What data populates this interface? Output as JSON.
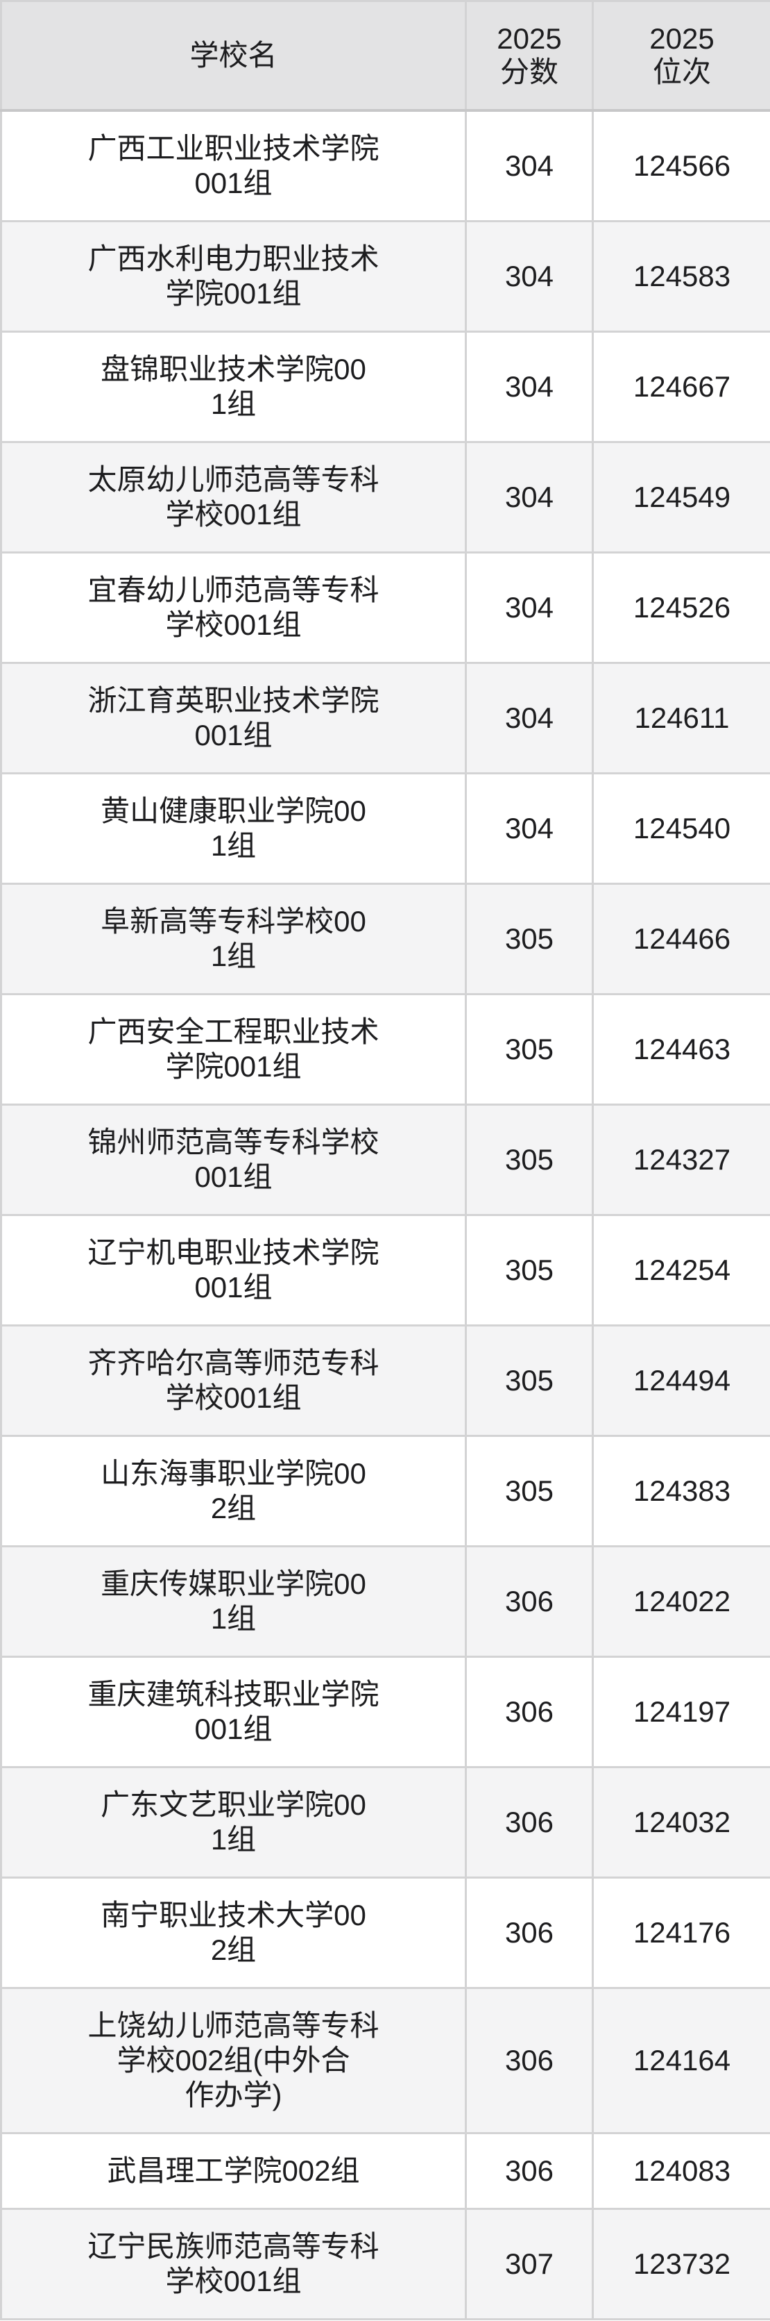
{
  "header": {
    "school_col": "学校名",
    "score_col": "2025\n分数",
    "rank_col": "2025\n位次"
  },
  "rows": [
    {
      "school": "广西工业职业技术学院\n001组",
      "score": "304",
      "rank": "124566"
    },
    {
      "school": "广西水利电力职业技术\n学院001组",
      "score": "304",
      "rank": "124583"
    },
    {
      "school": "盘锦职业技术学院00\n1组",
      "score": "304",
      "rank": "124667"
    },
    {
      "school": "太原幼儿师范高等专科\n学校001组",
      "score": "304",
      "rank": "124549"
    },
    {
      "school": "宜春幼儿师范高等专科\n学校001组",
      "score": "304",
      "rank": "124526"
    },
    {
      "school": "浙江育英职业技术学院\n001组",
      "score": "304",
      "rank": "124611"
    },
    {
      "school": "黄山健康职业学院00\n1组",
      "score": "304",
      "rank": "124540"
    },
    {
      "school": "阜新高等专科学校00\n1组",
      "score": "305",
      "rank": "124466"
    },
    {
      "school": "广西安全工程职业技术\n学院001组",
      "score": "305",
      "rank": "124463"
    },
    {
      "school": "锦州师范高等专科学校\n001组",
      "score": "305",
      "rank": "124327"
    },
    {
      "school": "辽宁机电职业技术学院\n001组",
      "score": "305",
      "rank": "124254"
    },
    {
      "school": "齐齐哈尔高等师范专科\n学校001组",
      "score": "305",
      "rank": "124494"
    },
    {
      "school": "山东海事职业学院00\n2组",
      "score": "305",
      "rank": "124383"
    },
    {
      "school": "重庆传媒职业学院00\n1组",
      "score": "306",
      "rank": "124022"
    },
    {
      "school": "重庆建筑科技职业学院\n001组",
      "score": "306",
      "rank": "124197"
    },
    {
      "school": "广东文艺职业学院00\n1组",
      "score": "306",
      "rank": "124032"
    },
    {
      "school": "南宁职业技术大学00\n2组",
      "score": "306",
      "rank": "124176"
    },
    {
      "school": "上饶幼儿师范高等专科\n学校002组(中外合\n作办学)",
      "score": "306",
      "rank": "124164"
    },
    {
      "school": "武昌理工学院002组",
      "score": "306",
      "rank": "124083"
    },
    {
      "school": "辽宁民族师范高等专科\n学校001组",
      "score": "307",
      "rank": "123732"
    }
  ],
  "colors": {
    "header_bg": "#e3e3e4",
    "row_bg": "#ffffff",
    "row_alt_bg": "#f4f4f5",
    "border": "#d3d3d4",
    "header_border": "#c7c7c8",
    "text": "#1d1d1f"
  }
}
